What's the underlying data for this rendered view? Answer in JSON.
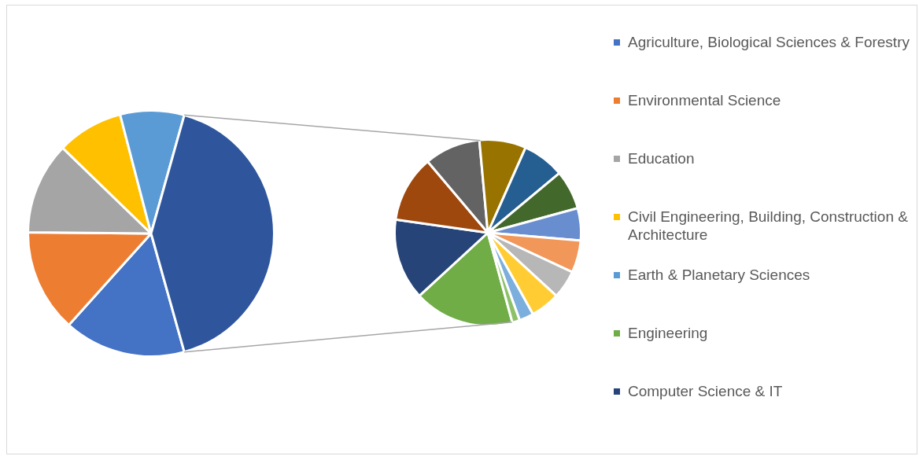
{
  "chart_data": [
    {
      "type": "pie",
      "legend": "right",
      "categories": [
        "Agriculture, Biological Sciences & Forestry",
        "Environmental Science",
        "Education",
        "Civil Engineering, Building, Construction & Architecture",
        "Earth & Planetary Sciences",
        null
      ],
      "values": [
        16,
        13.5,
        12.1,
        8.7,
        8.4,
        41.3
      ],
      "colors": [
        "#4472c4",
        "#ed7d31",
        "#a5a5a5",
        "#ffc000",
        "#5b9bd5",
        "#2f569c"
      ]
    },
    {
      "type": "pie",
      "legend": "right",
      "categories": [
        "Engineering",
        "Computer Science & IT",
        null,
        null,
        null,
        null,
        null,
        null,
        null,
        null,
        null,
        null,
        null
      ],
      "values": [
        17.4,
        14.1,
        11.6,
        9.7,
        8.1,
        7.3,
        6.8,
        5.6,
        5.6,
        4.9,
        5.1,
        2.5,
        1.3
      ],
      "colors": [
        "#70ad47",
        "#264478",
        "#9e480e",
        "#636363",
        "#997300",
        "#255e91",
        "#43682b",
        "#698ed0",
        "#f1975a",
        "#b7b7b7",
        "#ffcd33",
        "#7cafdd",
        "#8cc168"
      ]
    }
  ]
}
